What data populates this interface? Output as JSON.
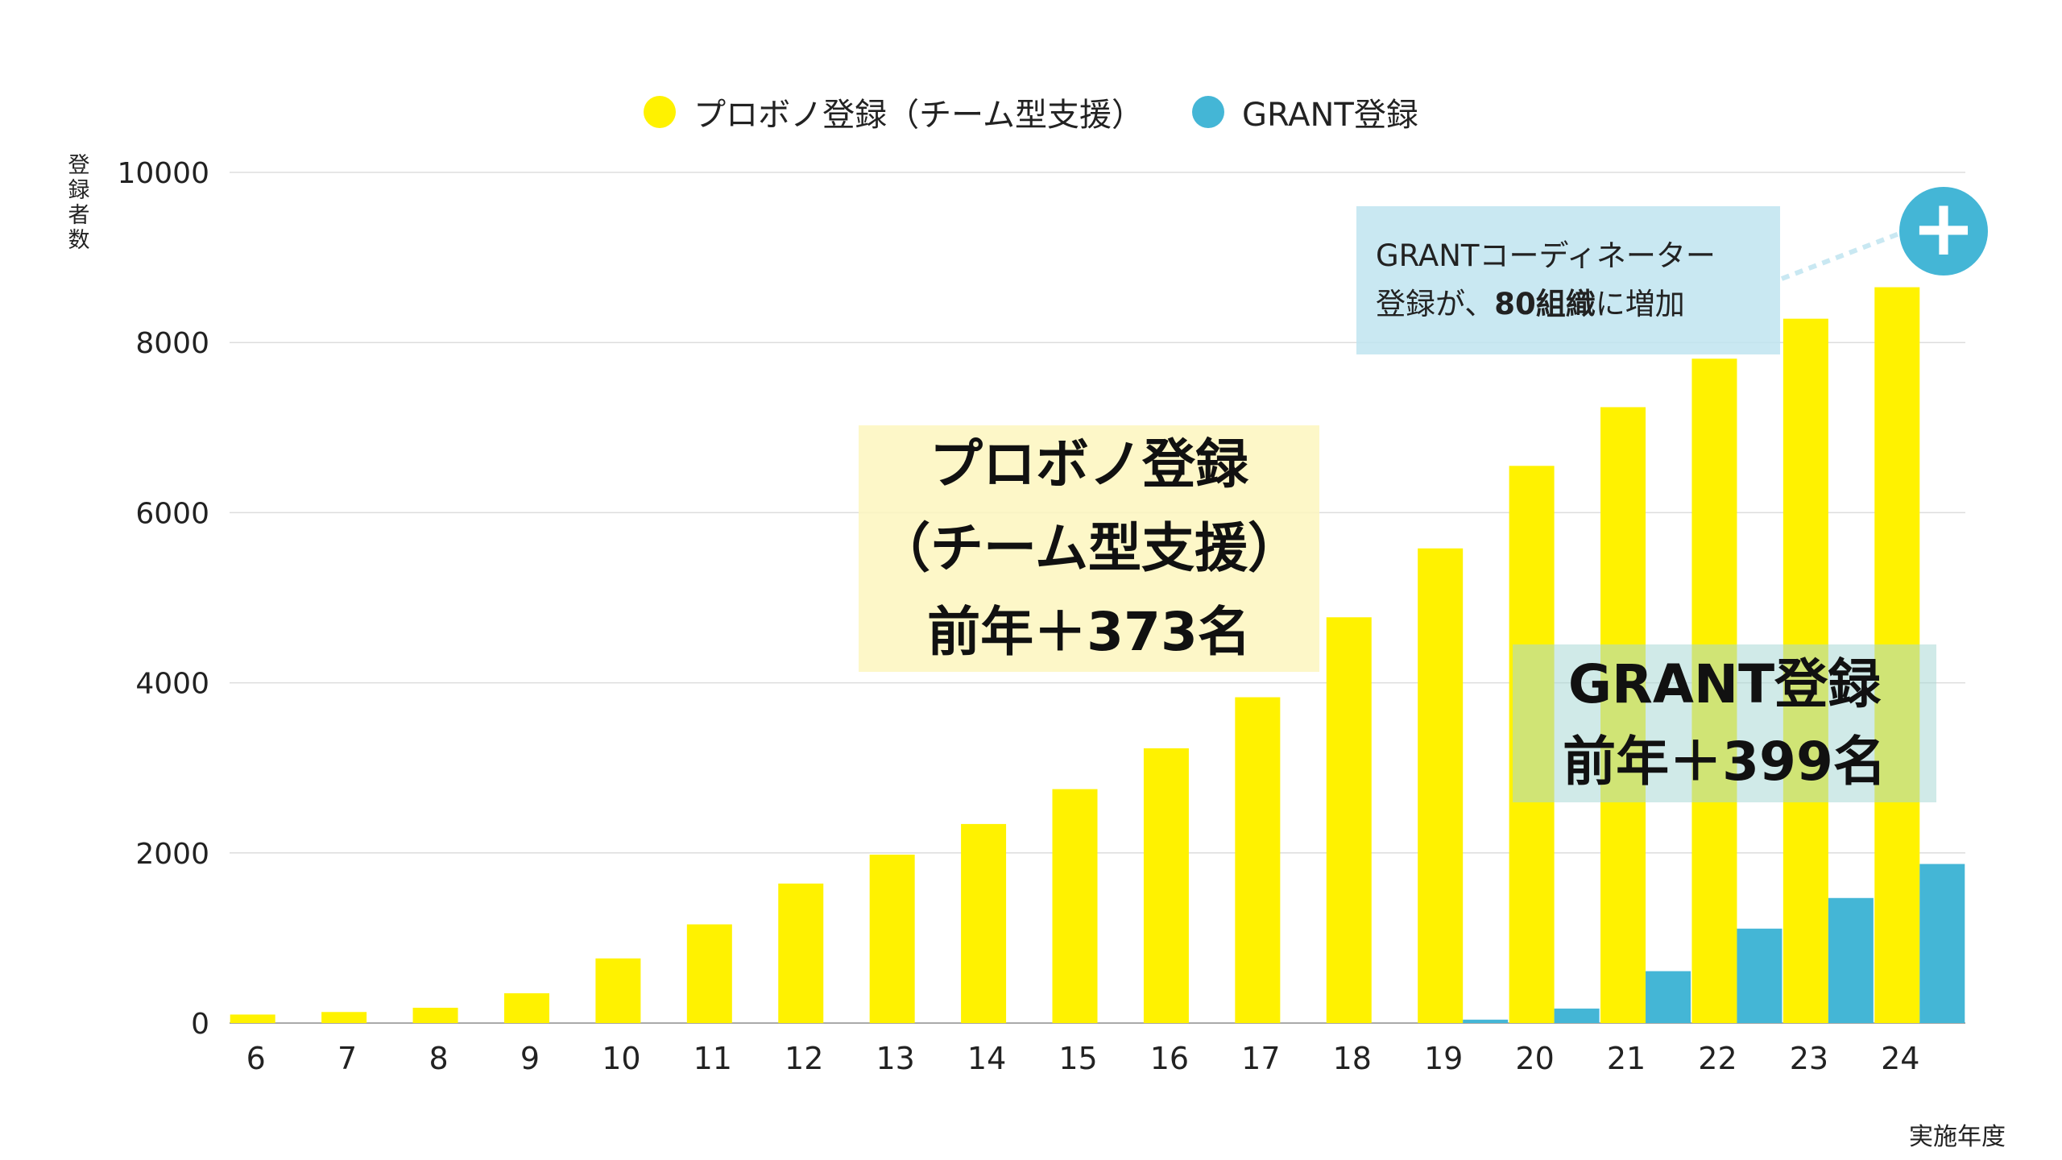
{
  "chart_data": {
    "type": "bar",
    "title": "",
    "ylabel": "登録者数",
    "xlabel": "実施年度",
    "ylim": [
      0,
      10000
    ],
    "yticks": [
      0,
      2000,
      4000,
      6000,
      8000,
      10000
    ],
    "grid": true,
    "legend_position": "top-center",
    "categories": [
      "6",
      "7",
      "8",
      "9",
      "10",
      "11",
      "12",
      "13",
      "14",
      "15",
      "16",
      "17",
      "18",
      "19",
      "20",
      "21",
      "22",
      "23",
      "24"
    ],
    "series": [
      {
        "name": "プロボノ登録（チーム型支援）",
        "color": "#fff200",
        "values": [
          100,
          130,
          180,
          350,
          760,
          1160,
          1640,
          1980,
          2340,
          2750,
          3230,
          3830,
          4770,
          5580,
          6550,
          7240,
          7810,
          8280,
          8650
        ]
      },
      {
        "name": "GRANT登録",
        "color": "#44b6d6",
        "values": [
          0,
          0,
          0,
          0,
          0,
          0,
          0,
          0,
          0,
          0,
          0,
          0,
          0,
          40,
          170,
          610,
          1110,
          1470,
          1870
        ]
      }
    ],
    "annotations": {
      "probono": {
        "line1": "プロボノ登録",
        "line2": "（チーム型支援）",
        "line3": "前年＋373名"
      },
      "grant": {
        "line1": "GRANT登録",
        "line2": "前年＋399名"
      },
      "coordinator": {
        "line1": "GRANTコーディネーター",
        "line2_prefix": "登録が、",
        "line2_bold": "80組織",
        "line2_suffix": "に増加"
      },
      "plus_icon": "plus-icon"
    }
  }
}
